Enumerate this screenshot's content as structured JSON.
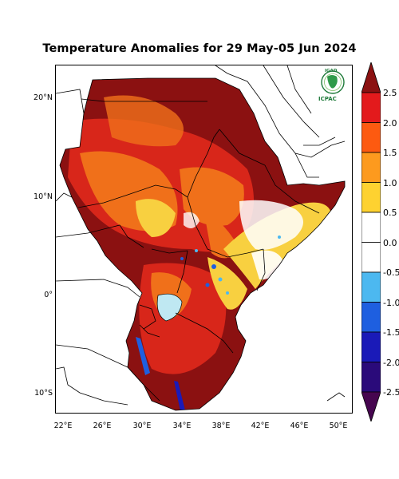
{
  "title": "Temperature Anomalies for 29 May-05 Jun 2024",
  "lat_labels": [
    "20°N",
    "10°N",
    "0°",
    "10°S"
  ],
  "lon_labels": [
    "22°E",
    "26°E",
    "30°E",
    "34°E",
    "38°E",
    "42°E",
    "46°E",
    "50°E"
  ],
  "colorbar": {
    "labels": [
      "2.5",
      "2.0",
      "1.5",
      "1.0",
      "0.5",
      "0.0",
      "-0.5",
      "-1.0",
      "-1.5",
      "-2.0",
      "-2.5"
    ],
    "colors": [
      "#8b1111",
      "#e31a1c",
      "#fd5a10",
      "#fd9a1e",
      "#fed230",
      "#ffffff",
      "#4cb8f0",
      "#1e5fe0",
      "#1a1ab8",
      "#2a0a7a",
      "#46054f"
    ]
  },
  "logo": {
    "org_top": "IGAD",
    "org_bottom": "ICPAC"
  },
  "colors": {
    "dark_red": "#8b1111",
    "red": "#d8261a",
    "orange": "#f0701a",
    "yellow": "#f8d040",
    "sea": "#ffffff",
    "lake": "#bfe8f2"
  }
}
